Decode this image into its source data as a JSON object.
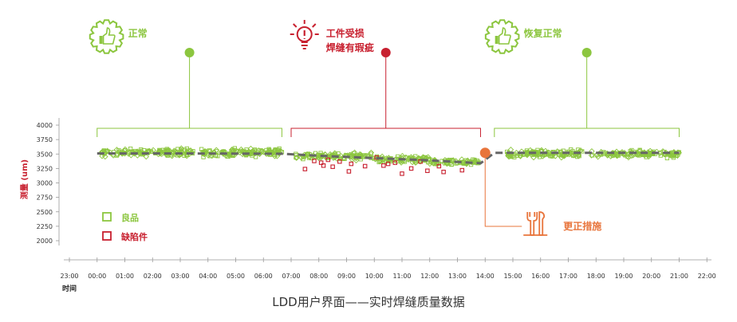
{
  "caption": "LDD用户界面——实时焊缝质量数据",
  "colors": {
    "green": "#8cc63f",
    "red": "#c8202f",
    "orange": "#e8743b",
    "gray": "#666666",
    "axis": "#999999",
    "tick": "#333333"
  },
  "phases": [
    {
      "label1": "正常",
      "label2": "",
      "color": "#8cc63f",
      "icon": "thumbs-up-gear-icon",
      "start": "00:00",
      "end": "06:40"
    },
    {
      "label1": "工件受损",
      "label2": "焊缝有瑕疵",
      "color": "#c8202f",
      "icon": "lightbulb-alert-icon",
      "start": "07:00",
      "end": "13:50"
    },
    {
      "label1": "恢复正常",
      "label2": "",
      "color": "#8cc63f",
      "icon": "thumbs-up-gear-icon",
      "start": "14:20",
      "end": "21:00"
    }
  ],
  "action": {
    "label": "更正措施",
    "color": "#e8743b",
    "icon": "wrench-tools-icon",
    "time": "14:00",
    "value": 3520
  },
  "chart_data": {
    "type": "scatter",
    "ylabel": "测量 (um)",
    "xlabel": "时间",
    "yticks": [
      2000,
      2250,
      2500,
      2750,
      3000,
      3250,
      3500,
      3750,
      4000
    ],
    "ylim": [
      1950,
      4050
    ],
    "xticks": [
      "23:00",
      "00:00",
      "01:00",
      "02:00",
      "03:00",
      "04:00",
      "05:00",
      "06:00",
      "07:00",
      "08:00",
      "09:00",
      "10:00",
      "11:00",
      "12:00",
      "13:00",
      "14:00",
      "15:00",
      "16:00",
      "17:00",
      "18:00",
      "19:00",
      "20:00",
      "21:00",
      "22:00"
    ],
    "legend": {
      "position": "left",
      "items": [
        {
          "name": "良品",
          "color": "#8cc63f"
        },
        {
          "name": "缺陷件",
          "color": "#c8202f"
        }
      ]
    },
    "trend": [
      {
        "x": "00:00",
        "y": 3510
      },
      {
        "x": "03:00",
        "y": 3510
      },
      {
        "x": "06:40",
        "y": 3505
      },
      {
        "x": "08:00",
        "y": 3470
      },
      {
        "x": "10:00",
        "y": 3430
      },
      {
        "x": "12:00",
        "y": 3390
      },
      {
        "x": "13:50",
        "y": 3340
      },
      {
        "x": "14:20",
        "y": 3520
      },
      {
        "x": "21:00",
        "y": 3520
      }
    ],
    "good_clusters": [
      {
        "start": "00:10",
        "end": "03:30",
        "mean": 3525,
        "spread": 90,
        "count": 140
      },
      {
        "start": "03:45",
        "end": "06:40",
        "mean": 3525,
        "spread": 90,
        "count": 140
      },
      {
        "start": "07:10",
        "end": "10:00",
        "mean": 3460,
        "spread": 90,
        "count": 110
      },
      {
        "start": "10:00",
        "end": "12:00",
        "mean": 3410,
        "spread": 80,
        "count": 80
      },
      {
        "start": "12:00",
        "end": "13:55",
        "mean": 3360,
        "spread": 70,
        "count": 70
      },
      {
        "start": "14:45",
        "end": "17:30",
        "mean": 3510,
        "spread": 90,
        "count": 130
      },
      {
        "start": "17:50",
        "end": "21:00",
        "mean": 3500,
        "spread": 85,
        "count": 130
      }
    ],
    "defects": [
      {
        "x": "07:30",
        "y": 3240
      },
      {
        "x": "07:50",
        "y": 3380
      },
      {
        "x": "08:05",
        "y": 3350
      },
      {
        "x": "08:10",
        "y": 3300
      },
      {
        "x": "08:20",
        "y": 3400
      },
      {
        "x": "08:30",
        "y": 3280
      },
      {
        "x": "08:45",
        "y": 3370
      },
      {
        "x": "09:05",
        "y": 3200
      },
      {
        "x": "09:10",
        "y": 3330
      },
      {
        "x": "09:40",
        "y": 3290
      },
      {
        "x": "10:05",
        "y": 3440
      },
      {
        "x": "10:20",
        "y": 3300
      },
      {
        "x": "10:30",
        "y": 3330
      },
      {
        "x": "10:45",
        "y": 3350
      },
      {
        "x": "11:00",
        "y": 3160
      },
      {
        "x": "11:20",
        "y": 3250
      },
      {
        "x": "11:40",
        "y": 3370
      },
      {
        "x": "11:55",
        "y": 3210
      },
      {
        "x": "12:20",
        "y": 3290
      },
      {
        "x": "12:30",
        "y": 3190
      },
      {
        "x": "13:10",
        "y": 3220
      }
    ]
  }
}
